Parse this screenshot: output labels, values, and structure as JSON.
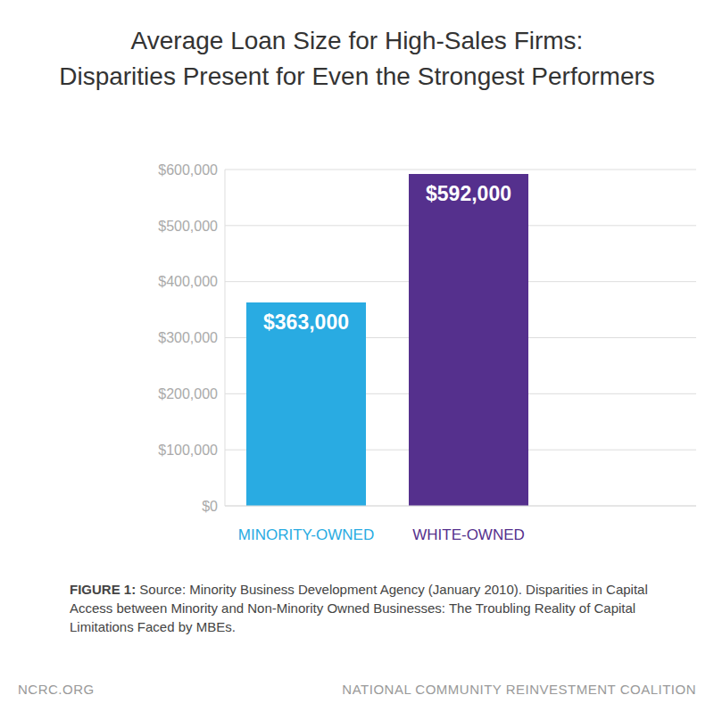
{
  "chart_data": {
    "type": "bar",
    "title": "Average Loan Size for High-Sales Firms:",
    "subtitle": "Disparities Present for Even the Strongest Performers",
    "categories": [
      "MINORITY-OWNED",
      "WHITE-OWNED"
    ],
    "values": [
      363000,
      592000
    ],
    "value_labels": [
      "$363,000",
      "$592,000"
    ],
    "data_labels": true,
    "colors": [
      "#29abe2",
      "#55308d"
    ],
    "ylim": [
      0,
      600000
    ],
    "yticks": [
      {
        "value": 0,
        "label": "$0"
      },
      {
        "value": 100000,
        "label": "$100,000"
      },
      {
        "value": 200000,
        "label": "$200,000"
      },
      {
        "value": 300000,
        "label": "$300,000"
      },
      {
        "value": 400000,
        "label": "$400,000"
      },
      {
        "value": 500000,
        "label": "$500,000"
      },
      {
        "value": 600000,
        "label": "$600,000"
      }
    ],
    "grid": true,
    "annotations": [
      "FIGURE 1:",
      "Source: Minority Business Development Agency (January 2010). Disparities in Capital Access between Minority and Non-Minority Owned Businesses: The Troubling Reality of Capital Limitations Faced by MBEs.",
      "NCRC.ORG",
      "NATIONAL COMMUNITY REINVESTMENT COALITION"
    ]
  }
}
